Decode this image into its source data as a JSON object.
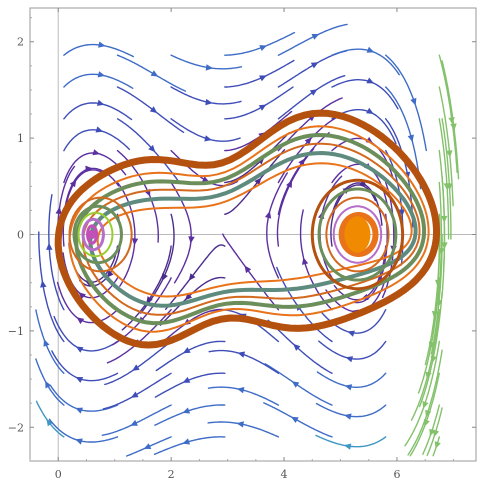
{
  "chart_data": {
    "type": "scatter",
    "plot_kind": "phase-portrait streamlines with orbit curves",
    "title": "",
    "xlabel": "",
    "ylabel": "",
    "xlim": [
      -0.5,
      7.4
    ],
    "ylim": [
      -2.35,
      2.35
    ],
    "x_ticks": [
      {
        "value": 0,
        "label": "0"
      },
      {
        "value": 2,
        "label": "2"
      },
      {
        "value": 4,
        "label": "4"
      },
      {
        "value": 6,
        "label": "6"
      }
    ],
    "y_ticks": [
      {
        "value": -2,
        "label": "−2"
      },
      {
        "value": -1,
        "label": "−1"
      },
      {
        "value": 0,
        "label": "0"
      },
      {
        "value": 1,
        "label": "1"
      },
      {
        "value": 2,
        "label": "2"
      }
    ],
    "grid": false,
    "legend": "none",
    "equilibria": [
      {
        "kind": "center",
        "x": 0.6,
        "y": 0.0
      },
      {
        "kind": "center",
        "x": 5.3,
        "y": 0.0
      },
      {
        "kind": "saddle",
        "x": 2.9,
        "y": 0.0
      }
    ],
    "orbit_colors": [
      "#B5510F",
      "#D2691E",
      "#E8731A",
      "#6B8E5A",
      "#5E8B7E",
      "#3F7F6F",
      "#9ACD32",
      "#8FBC8F",
      "#B66FC9",
      "#C04FB7"
    ],
    "streamline_colors": [
      "#4B2C8C",
      "#5B2FA0",
      "#3F4DB8",
      "#3E6CC7",
      "#3F97C4",
      "#52B5A4",
      "#83C16B"
    ],
    "orbits": [
      {
        "type": "outer",
        "half_width": 3.35,
        "half_height": 1.18,
        "x_center": 3.35,
        "color": "#B5510F",
        "stroke": 7
      },
      {
        "type": "outer",
        "half_width": 3.18,
        "half_height": 1.03,
        "x_center": 3.38,
        "color": "#E8731A",
        "stroke": 2
      },
      {
        "type": "outer",
        "half_width": 3.08,
        "half_height": 0.93,
        "x_center": 3.4,
        "color": "#6B8E5A",
        "stroke": 4
      },
      {
        "type": "outer",
        "half_width": 2.98,
        "half_height": 0.83,
        "x_center": 3.42,
        "color": "#D2691E",
        "stroke": 2
      },
      {
        "type": "outer",
        "half_width": 2.88,
        "half_height": 0.72,
        "x_center": 3.45,
        "color": "#5E8B7E",
        "stroke": 4
      },
      {
        "type": "outer",
        "half_width": 2.78,
        "half_height": 0.6,
        "x_center": 3.48,
        "color": "#E8731A",
        "stroke": 2
      },
      {
        "type": "right",
        "rx": 0.8,
        "ry": 0.5,
        "cx": 5.3,
        "color": "#B5510F",
        "stroke": 3
      },
      {
        "type": "right",
        "rx": 0.68,
        "ry": 0.42,
        "cx": 5.3,
        "color": "#6B8E5A",
        "stroke": 3
      },
      {
        "type": "right",
        "rx": 0.55,
        "ry": 0.34,
        "cx": 5.3,
        "color": "#D2691E",
        "stroke": 2
      },
      {
        "type": "right",
        "rx": 0.42,
        "ry": 0.26,
        "cx": 5.3,
        "color": "#B66FC9",
        "stroke": 2
      },
      {
        "type": "right",
        "rx": 0.3,
        "ry": 0.18,
        "cx": 5.32,
        "color": "#E8731A",
        "stroke": 6
      },
      {
        "type": "left",
        "rx": 0.55,
        "ry": 0.17,
        "cx": 0.75,
        "color": "#D2691E",
        "stroke": 2
      },
      {
        "type": "left",
        "rx": 0.42,
        "ry": 0.13,
        "cx": 0.7,
        "color": "#6B8E5A",
        "stroke": 3
      },
      {
        "type": "left",
        "rx": 0.3,
        "ry": 0.1,
        "cx": 0.66,
        "color": "#9ACD32",
        "stroke": 2
      },
      {
        "type": "left",
        "rx": 0.18,
        "ry": 0.07,
        "cx": 0.62,
        "color": "#B66FC9",
        "stroke": 3
      },
      {
        "type": "left",
        "rx": 0.08,
        "ry": 0.04,
        "cx": 0.6,
        "color": "#C04FB7",
        "stroke": 3
      }
    ]
  }
}
